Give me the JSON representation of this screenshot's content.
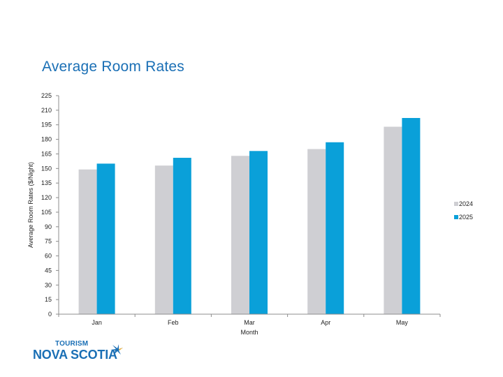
{
  "page_title": "Average Room Rates",
  "logo": {
    "line1": "TOURISM",
    "line2": "NOVA SCOTIA"
  },
  "colors": {
    "title": "#1a6fb5",
    "series_2024": "#cfcfd3",
    "series_2025": "#0aa0d9",
    "axis": "#8c8c8c"
  },
  "chart_data": {
    "type": "bar",
    "title": "",
    "xlabel": "Month",
    "ylabel": "Average Room Rates ($/Night)",
    "categories": [
      "Jan",
      "Feb",
      "Mar",
      "Apr",
      "May"
    ],
    "series": [
      {
        "name": "2024",
        "color": "#cfcfd3",
        "values": [
          149,
          153,
          163,
          170,
          193
        ]
      },
      {
        "name": "2025",
        "color": "#0aa0d9",
        "values": [
          155,
          161,
          168,
          177,
          202
        ]
      }
    ],
    "ylim": [
      0,
      225
    ],
    "yticks": [
      0,
      15,
      30,
      45,
      60,
      75,
      90,
      105,
      120,
      135,
      150,
      165,
      180,
      195,
      210,
      225
    ],
    "grid": false,
    "legend_position": "right"
  }
}
